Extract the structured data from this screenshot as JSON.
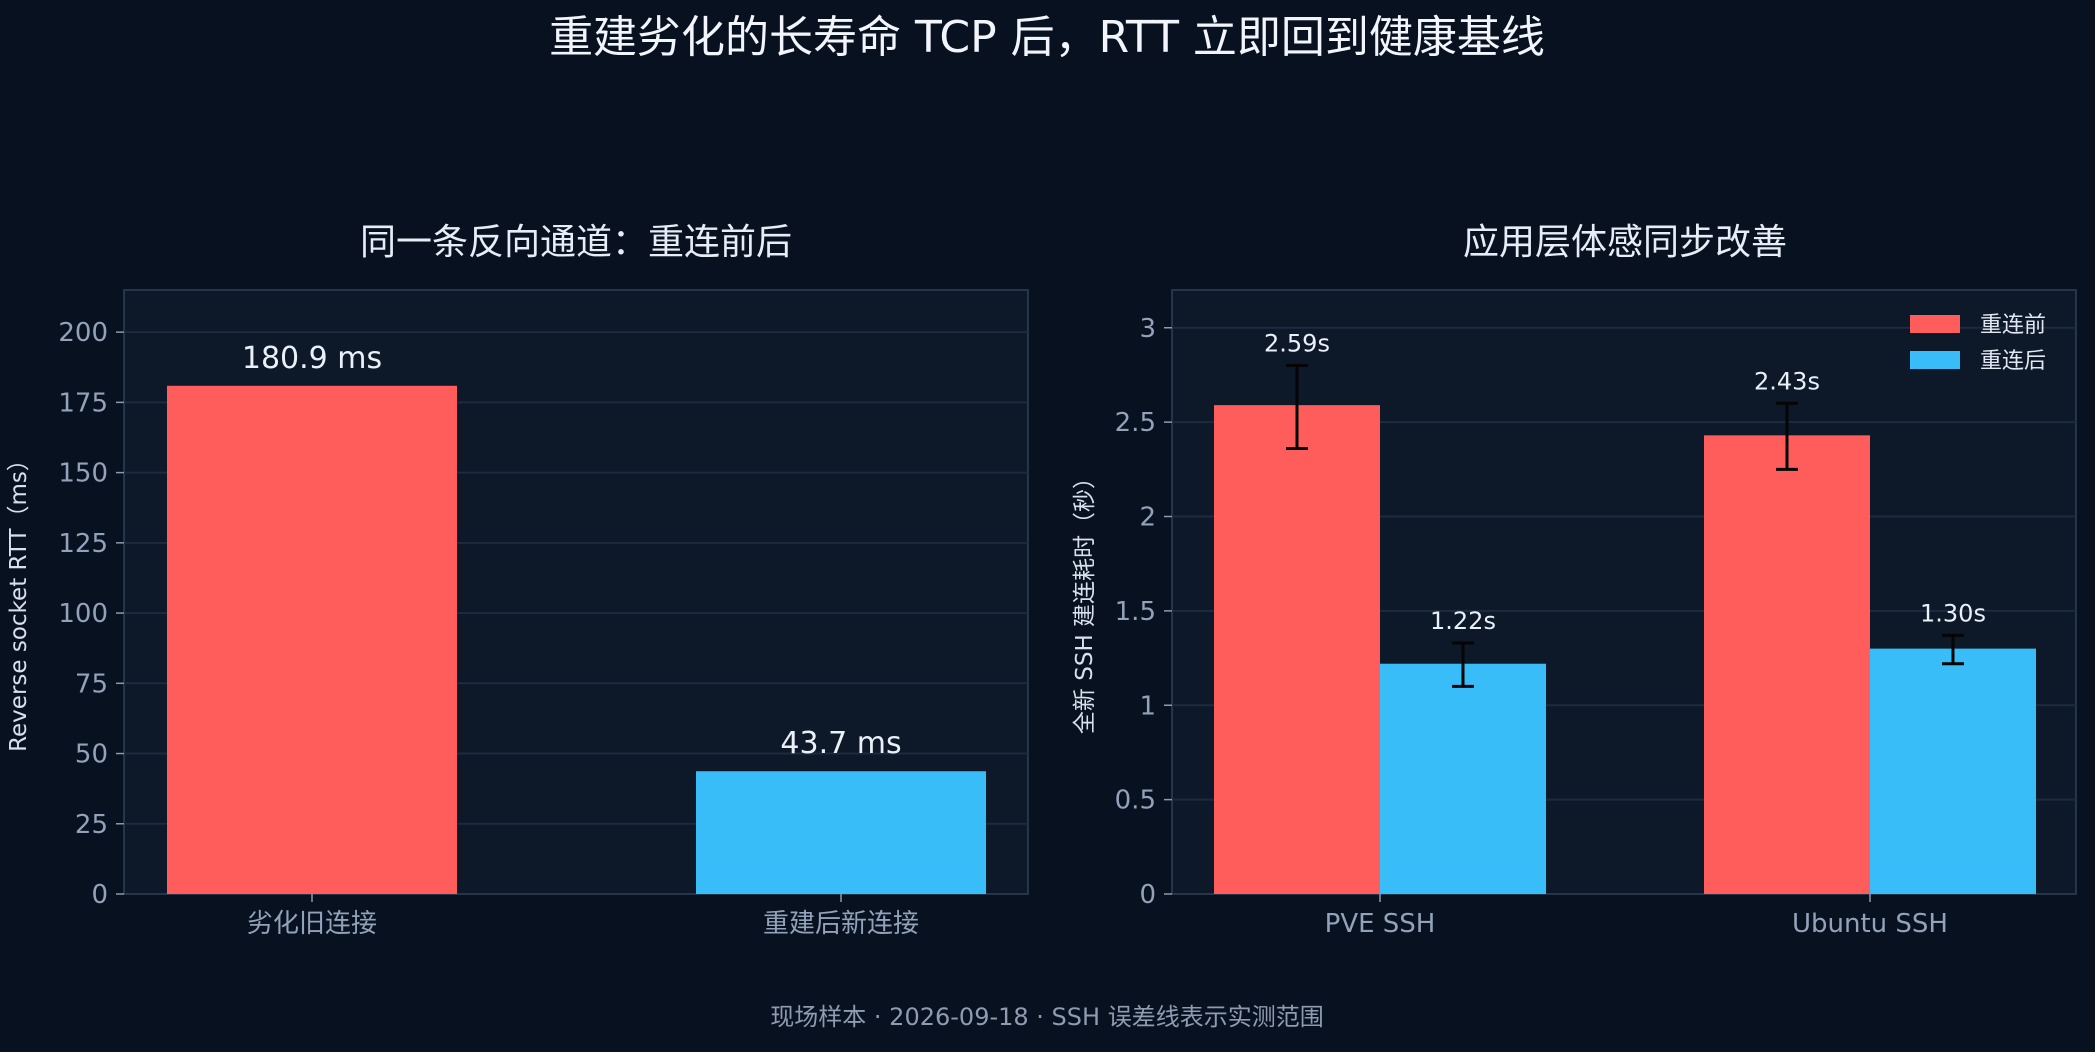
{
  "title": "重建劣化的长寿命 TCP 后，RTT 立即回到健康基线",
  "footer": "现场样本 · 2026-09-18 · SSH 误差线表示实测范围",
  "colors": {
    "page_bg": "#08111f",
    "panel_bg": "#0d1829",
    "grid": "#1d2b40",
    "spine": "#314158",
    "before": "#ff5c5c",
    "after": "#38bdf8",
    "errorbar": "#050505"
  },
  "chart_data": [
    {
      "type": "bar",
      "title": "同一条反向通道：重连前后",
      "categories": [
        "劣化旧连接",
        "重建后新连接"
      ],
      "values": [
        180.9,
        43.7
      ],
      "value_labels": [
        "180.9 ms",
        "43.7 ms"
      ],
      "xlabel": "",
      "ylabel": "Reverse socket RTT（ms）",
      "ylim": [
        0,
        215
      ],
      "yticks": [
        0,
        25,
        50,
        75,
        100,
        125,
        150,
        175,
        200
      ],
      "grid": true,
      "bar_colors": [
        "#ff5c5c",
        "#38bdf8"
      ]
    },
    {
      "type": "bar",
      "title": "应用层体感同步改善",
      "categories": [
        "PVE SSH",
        "Ubuntu SSH"
      ],
      "series": [
        {
          "name": "重连前",
          "values": [
            2.59,
            2.43
          ],
          "labels": [
            "2.59s",
            "2.43s"
          ],
          "error_range": [
            [
              2.36,
              2.8
            ],
            [
              2.25,
              2.6
            ]
          ],
          "color": "#ff5c5c"
        },
        {
          "name": "重连后",
          "values": [
            1.22,
            1.3
          ],
          "labels": [
            "1.22s",
            "1.30s"
          ],
          "error_range": [
            [
              1.1,
              1.33
            ],
            [
              1.22,
              1.37
            ]
          ],
          "color": "#38bdf8"
        }
      ],
      "xlabel": "",
      "ylabel": "全新 SSH 建连耗时（秒）",
      "ylim": [
        0,
        3.2
      ],
      "yticks": [
        0,
        0.5,
        1.0,
        1.5,
        2.0,
        2.5,
        3.0
      ],
      "grid": true,
      "legend": "top-right"
    }
  ]
}
